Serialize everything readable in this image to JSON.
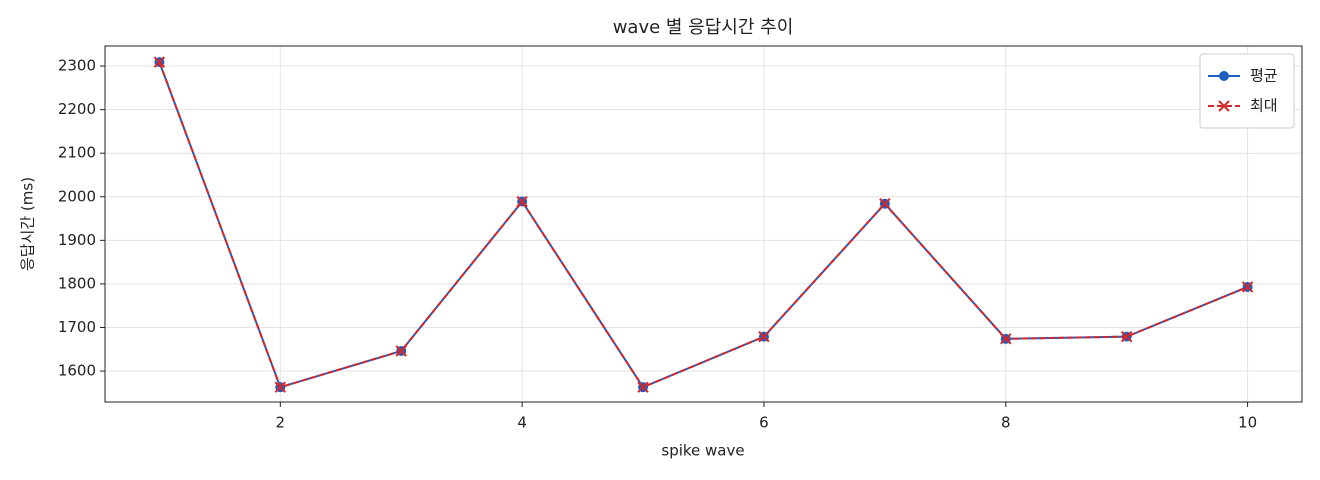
{
  "chart_data": {
    "type": "line",
    "title": "wave 별 응답시간 추이",
    "x_label": "spike wave",
    "y_label": "응답시간 (ms)",
    "x": [
      1,
      2,
      3,
      4,
      5,
      6,
      7,
      8,
      9,
      10
    ],
    "series": [
      {
        "name": "평균",
        "color": "#1f5fbf",
        "marker": "o",
        "linestyle": "solid",
        "values": [
          2309,
          1563,
          1646,
          1989,
          1563,
          1679,
          1984,
          1674,
          1679,
          1793
        ]
      },
      {
        "name": "최대",
        "color": "#d62728",
        "marker": "x",
        "linestyle": "dashed",
        "values": [
          2309,
          1563,
          1646,
          1989,
          1563,
          1679,
          1984,
          1674,
          1679,
          1793
        ]
      }
    ],
    "xlim": [
      0.55,
      10.45
    ],
    "xticks": [
      2,
      4,
      6,
      8,
      10
    ],
    "ylim": [
      1529,
      2346
    ],
    "yticks": [
      1600,
      1700,
      1800,
      1900,
      2000,
      2100,
      2200,
      2300
    ],
    "grid": true,
    "legend": "upper right"
  }
}
